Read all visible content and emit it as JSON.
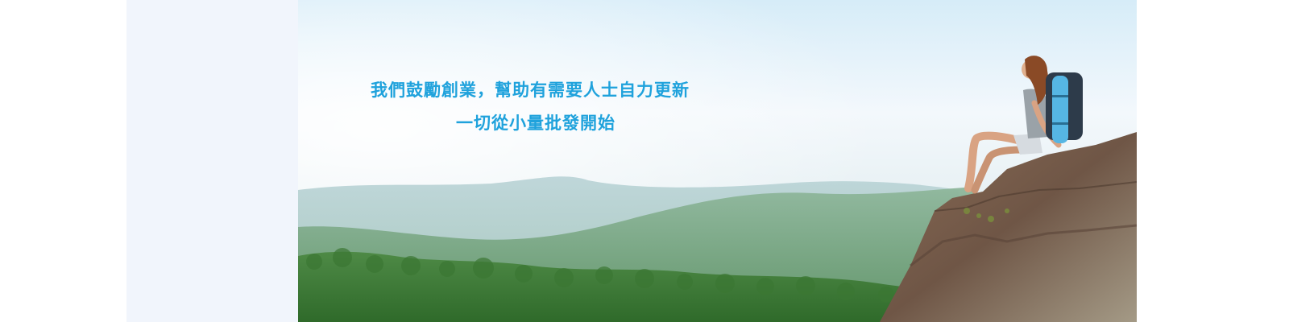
{
  "banner": {
    "line1": "我們鼓勵創業，幫助有需要人士自力更新",
    "line2": "一切從小量批發開始",
    "text_color": "#1fa2dc",
    "side_panel_color": "#f1f5fc"
  }
}
